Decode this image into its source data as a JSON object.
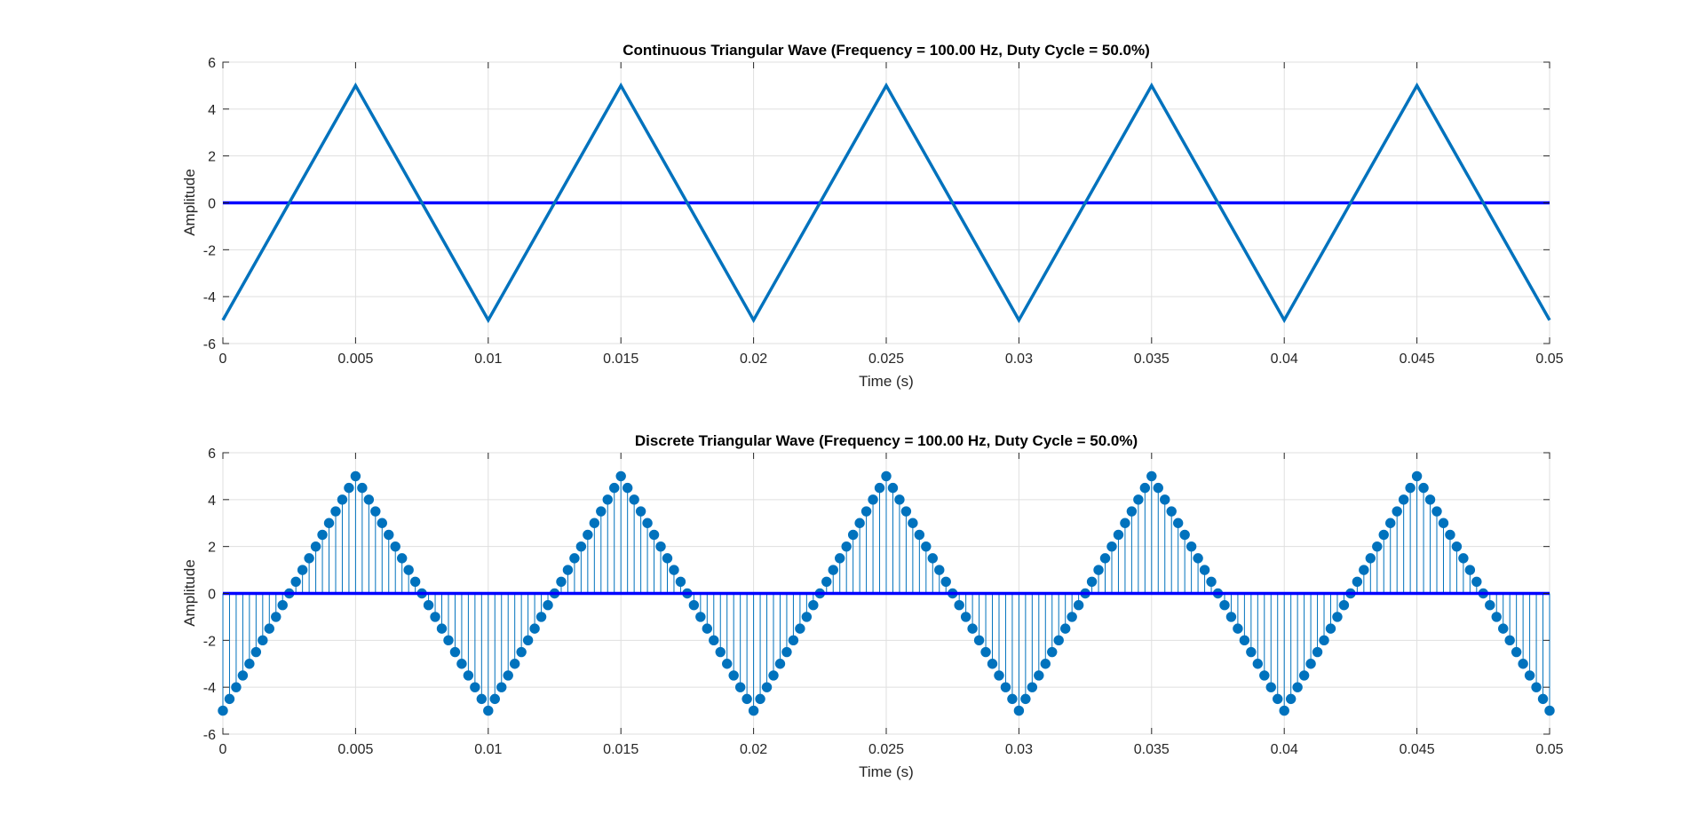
{
  "chart_data": [
    {
      "type": "line",
      "title": "Continuous Triangular Wave (Frequency = 100.00 Hz, Duty Cycle = 50.0%)",
      "xlabel": "Time (s)",
      "ylabel": "Amplitude",
      "xlim": [
        0,
        0.05
      ],
      "ylim": [
        -6,
        6
      ],
      "xticks": [
        0,
        0.005,
        0.01,
        0.015,
        0.02,
        0.025,
        0.03,
        0.035,
        0.04,
        0.045,
        0.05
      ],
      "xtick_labels": [
        "0",
        "0.005",
        "0.01",
        "0.015",
        "0.02",
        "0.025",
        "0.03",
        "0.035",
        "0.04",
        "0.045",
        "0.05"
      ],
      "yticks": [
        -6,
        -4,
        -2,
        0,
        2,
        4,
        6
      ],
      "ytick_labels": [
        "-6",
        "-4",
        "-2",
        "0",
        "2",
        "4",
        "6"
      ],
      "grid": true,
      "series": [
        {
          "x": [
            0,
            0.005,
            0.01,
            0.015,
            0.02,
            0.025,
            0.03,
            0.035,
            0.04,
            0.045,
            0.05
          ],
          "y": [
            -5,
            5,
            -5,
            5,
            -5,
            5,
            -5,
            5,
            -5,
            5,
            -5
          ],
          "color": "#0072BD"
        }
      ],
      "reference_lines": [
        {
          "y": 0,
          "color": "#0000FF"
        }
      ]
    },
    {
      "type": "stem",
      "title": "Discrete Triangular Wave (Frequency = 100.00 Hz, Duty Cycle = 50.0%)",
      "xlabel": "Time (s)",
      "ylabel": "Amplitude",
      "xlim": [
        0,
        0.05
      ],
      "ylim": [
        -6,
        6
      ],
      "xticks": [
        0,
        0.005,
        0.01,
        0.015,
        0.02,
        0.025,
        0.03,
        0.035,
        0.04,
        0.045,
        0.05
      ],
      "xtick_labels": [
        "0",
        "0.005",
        "0.01",
        "0.015",
        "0.02",
        "0.025",
        "0.03",
        "0.035",
        "0.04",
        "0.045",
        "0.05"
      ],
      "yticks": [
        -6,
        -4,
        -2,
        0,
        2,
        4,
        6
      ],
      "ytick_labels": [
        "-6",
        "-4",
        "-2",
        "0",
        "2",
        "4",
        "6"
      ],
      "grid": true,
      "sample_interval": 0.00025,
      "series": [
        {
          "x_start": 0,
          "x_end": 0.05,
          "y": [
            -5,
            -4.5,
            -4,
            -3.5,
            -3,
            -2.5,
            -2,
            -1.5,
            -1,
            -0.5,
            0,
            0.5,
            1,
            1.5,
            2,
            2.5,
            3,
            3.5,
            4,
            4.5,
            5,
            4.5,
            4,
            3.5,
            3,
            2.5,
            2,
            1.5,
            1,
            0.5,
            0,
            -0.5,
            -1,
            -1.5,
            -2,
            -2.5,
            -3,
            -3.5,
            -4,
            -4.5,
            -5,
            -4.5,
            -4,
            -3.5,
            -3,
            -2.5,
            -2,
            -1.5,
            -1,
            -0.5,
            0,
            0.5,
            1,
            1.5,
            2,
            2.5,
            3,
            3.5,
            4,
            4.5,
            5,
            4.5,
            4,
            3.5,
            3,
            2.5,
            2,
            1.5,
            1,
            0.5,
            0,
            -0.5,
            -1,
            -1.5,
            -2,
            -2.5,
            -3,
            -3.5,
            -4,
            -4.5,
            -5,
            -4.5,
            -4,
            -3.5,
            -3,
            -2.5,
            -2,
            -1.5,
            -1,
            -0.5,
            0,
            0.5,
            1,
            1.5,
            2,
            2.5,
            3,
            3.5,
            4,
            4.5,
            5,
            4.5,
            4,
            3.5,
            3,
            2.5,
            2,
            1.5,
            1,
            0.5,
            0,
            -0.5,
            -1,
            -1.5,
            -2,
            -2.5,
            -3,
            -3.5,
            -4,
            -4.5,
            -5,
            -4.5,
            -4,
            -3.5,
            -3,
            -2.5,
            -2,
            -1.5,
            -1,
            -0.5,
            0,
            0.5,
            1,
            1.5,
            2,
            2.5,
            3,
            3.5,
            4,
            4.5,
            5,
            4.5,
            4,
            3.5,
            3,
            2.5,
            2,
            1.5,
            1,
            0.5,
            0,
            -0.5,
            -1,
            -1.5,
            -2,
            -2.5,
            -3,
            -3.5,
            -4,
            -4.5,
            -5,
            -4.5,
            -4,
            -3.5,
            -3,
            -2.5,
            -2,
            -1.5,
            -1,
            -0.5,
            0,
            0.5,
            1,
            1.5,
            2,
            2.5,
            3,
            3.5,
            4,
            4.5,
            5,
            4.5,
            4,
            3.5,
            3,
            2.5,
            2,
            1.5,
            1,
            0.5,
            0,
            -0.5,
            -1,
            -1.5,
            -2,
            -2.5,
            -3,
            -3.5,
            -4,
            -4.5,
            -5
          ],
          "color": "#0072BD"
        }
      ],
      "reference_lines": [
        {
          "y": 0,
          "color": "#0000FF"
        }
      ]
    }
  ]
}
